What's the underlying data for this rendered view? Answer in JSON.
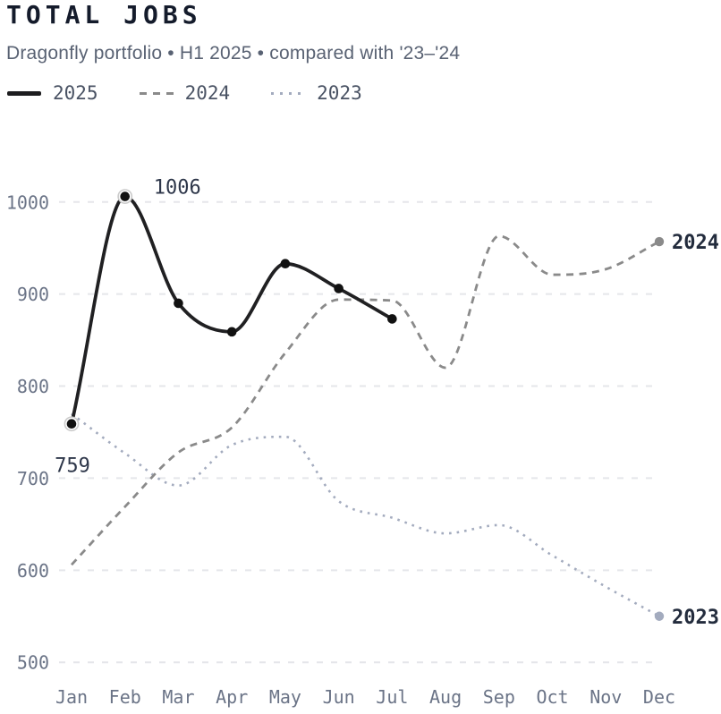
{
  "header": {
    "title": "TOTAL JOBS",
    "subtitle": "Dragonfly portfolio • H1 2025 • compared with '23–'24"
  },
  "legend": [
    {
      "label": "2025",
      "style": "solid",
      "color": "#1d1d1f"
    },
    {
      "label": "2024",
      "style": "dashed",
      "color": "#8a8a8a"
    },
    {
      "label": "2023",
      "style": "dotted",
      "color": "#a3abbe"
    }
  ],
  "chart_data": {
    "type": "line",
    "title": "TOTAL JOBS",
    "subtitle": "Dragonfly portfolio • H1 2025 • compared with '23–'24",
    "categories": [
      "Jan",
      "Feb",
      "Mar",
      "Apr",
      "May",
      "Jun",
      "Jul",
      "Aug",
      "Sep",
      "Oct",
      "Nov",
      "Dec"
    ],
    "y_ticks": [
      500,
      600,
      700,
      800,
      900,
      1000
    ],
    "ylim": [
      470,
      1040
    ],
    "grid": "horizontal dashed",
    "legend_position": "top-left",
    "series": [
      {
        "name": "2023",
        "style": "dotted",
        "color": "#a3abbe",
        "values": [
          770,
          727,
          692,
          736,
          745,
          675,
          657,
          640,
          649,
          616,
          582,
          550
        ],
        "end_label": "2023"
      },
      {
        "name": "2024",
        "style": "dashed",
        "color": "#8a8a8a",
        "values": [
          606,
          669,
          728,
          755,
          836,
          894,
          893,
          820,
          963,
          921,
          927,
          957
        ],
        "end_label": "2024"
      },
      {
        "name": "2025",
        "style": "solid",
        "color": "#202022",
        "values": [
          759,
          1006,
          890,
          859,
          933,
          906,
          873
        ],
        "markers": true,
        "annotations": [
          {
            "index": 0,
            "text": "759",
            "anchor": "middle",
            "dx": 1,
            "dy": 54,
            "halo": true
          },
          {
            "index": 1,
            "text": "1006",
            "anchor": "start",
            "dx": 32,
            "dy": -3,
            "halo": true
          }
        ]
      }
    ]
  },
  "colors": {
    "grid": "#e5e6ea",
    "axis_text": "#6b7487",
    "annotation_text": "#2e374a",
    "end_label_text": "#232c3d"
  }
}
